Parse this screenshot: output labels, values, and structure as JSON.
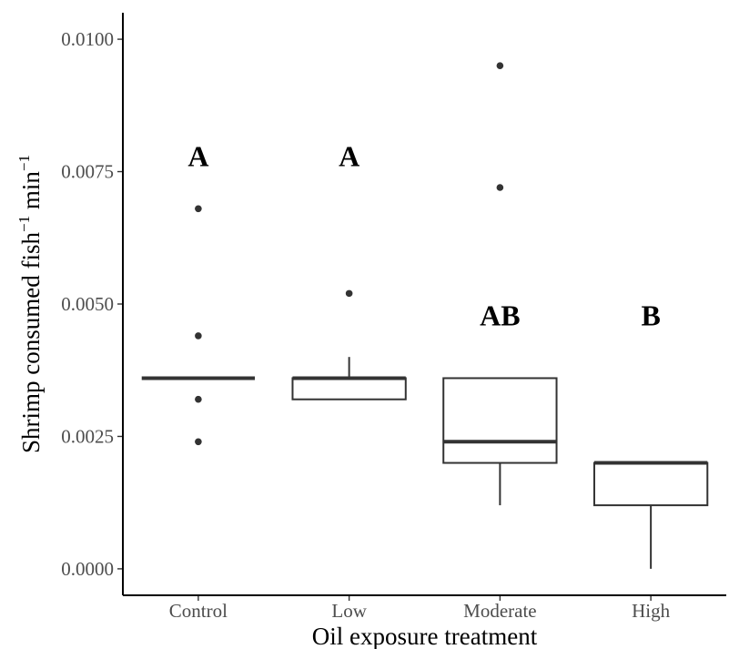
{
  "chart_data": {
    "type": "box",
    "xlabel": "Oil exposure treatment",
    "ylabel_main": "Shrimp consumed fish",
    "ylabel_sup1": "−1",
    "ylabel_mid": " min",
    "ylabel_sup2": "−1",
    "ylim": [
      -0.0005,
      0.0105
    ],
    "yticks": [
      {
        "value": 0.0,
        "label": "0.0000"
      },
      {
        "value": 0.0025,
        "label": "0.0025"
      },
      {
        "value": 0.005,
        "label": "0.0050"
      },
      {
        "value": 0.0075,
        "label": "0.0075"
      },
      {
        "value": 0.01,
        "label": "0.0100"
      }
    ],
    "grid": false,
    "legend": "none",
    "categories": [
      "Control",
      "Low",
      "Moderate",
      "High"
    ],
    "boxes": [
      {
        "category": "Control",
        "q1": 0.0036,
        "median": 0.0036,
        "q3": 0.0036,
        "whisker_low": 0.0036,
        "whisker_high": 0.0036,
        "outliers": [
          0.0024,
          0.0032,
          0.0044,
          0.0068
        ],
        "group": "A"
      },
      {
        "category": "Low",
        "q1": 0.0032,
        "median": 0.0036,
        "q3": 0.0036,
        "whisker_low": 0.0032,
        "whisker_high": 0.004,
        "outliers": [
          0.0052
        ],
        "group": "A"
      },
      {
        "category": "Moderate",
        "q1": 0.002,
        "median": 0.0024,
        "q3": 0.0036,
        "whisker_low": 0.0012,
        "whisker_high": 0.0036,
        "outliers": [
          0.0072,
          0.0095
        ],
        "group": "AB"
      },
      {
        "category": "High",
        "q1": 0.0012,
        "median": 0.002,
        "q3": 0.002,
        "whisker_low": 0.0,
        "whisker_high": 0.002,
        "outliers": [],
        "group": "B"
      }
    ],
    "colors": {
      "box_line": "#333333",
      "box_fill": "#ffffff",
      "axis": "#000000",
      "tick_text": "#4d4d4d"
    }
  }
}
